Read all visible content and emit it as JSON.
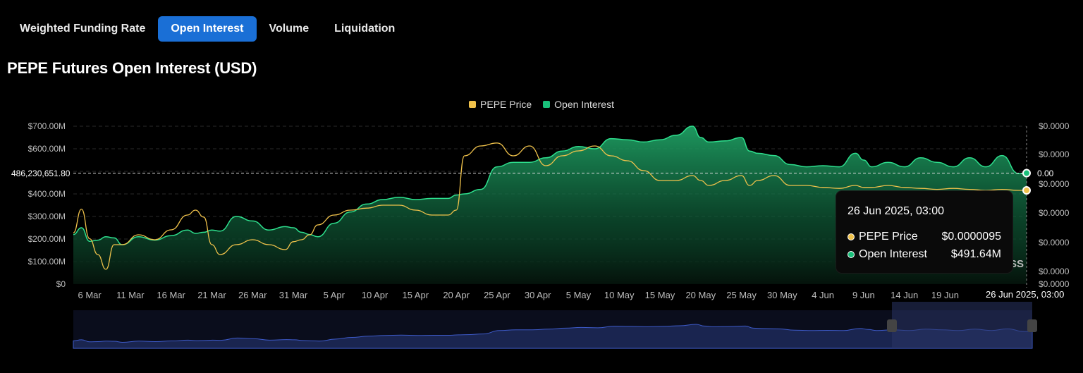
{
  "tabs": [
    {
      "label": "Weighted Funding Rate",
      "active": false
    },
    {
      "label": "Open Interest",
      "active": true
    },
    {
      "label": "Volume",
      "active": false
    },
    {
      "label": "Liquidation",
      "active": false
    }
  ],
  "title": "PEPE Futures Open Interest (USD)",
  "legend": [
    {
      "label": "PEPE Price",
      "color": "#f0c24b"
    },
    {
      "label": "Open Interest",
      "color": "#19c07a"
    }
  ],
  "crosshair": {
    "y_value_label": "486,230,651.80",
    "right_value_label": "0.00",
    "x_label": "26 Jun 2025, 03:00"
  },
  "tooltip": {
    "date": "26 Jun 2025, 03:00",
    "price_label": "PEPE Price",
    "price_value": "$0.0000095",
    "oi_label": "Open Interest",
    "oi_value": "$491.64M"
  },
  "watermark": "SS",
  "chart_data": {
    "type": "area",
    "title": "PEPE Futures Open Interest (USD)",
    "x_ticks": [
      "6 Mar",
      "11 Mar",
      "16 Mar",
      "21 Mar",
      "26 Mar",
      "31 Mar",
      "5 Apr",
      "10 Apr",
      "15 Apr",
      "20 Apr",
      "25 Apr",
      "30 Apr",
      "5 May",
      "10 May",
      "15 May",
      "20 May",
      "25 May",
      "30 May",
      "4 Jun",
      "9 Jun",
      "14 Jun",
      "19 Jun"
    ],
    "y_left_ticks": [
      "$700.00M",
      "$600.00M",
      "$500.00M",
      "$400.00M",
      "$300.00M",
      "$200.00M",
      "$100.00M",
      "$0"
    ],
    "y_right_ticks": [
      "$0.0000",
      "$0.0000",
      "$0.0000",
      "$0.0000",
      "$0.0000",
      "$0.0000",
      "$0.0000"
    ],
    "ylim_left": [
      0,
      700
    ],
    "ylim_right": [
      0,
      1.6e-05
    ],
    "x_range_days": [
      0,
      117
    ],
    "series": [
      {
        "name": "Open Interest",
        "color": "#19c07a",
        "unit": "USD millions",
        "x_days": [
          0,
          1,
          2,
          3,
          4,
          5,
          6,
          8,
          10,
          12,
          14,
          15,
          16,
          17,
          18,
          20,
          22,
          24,
          26,
          27,
          28,
          29,
          30,
          32,
          34,
          36,
          38,
          40,
          42,
          44,
          46,
          47,
          48,
          50,
          52,
          54,
          56,
          58,
          60,
          62,
          64,
          66,
          68,
          70,
          72,
          74,
          76,
          77,
          78,
          80,
          82,
          83,
          84,
          86,
          88,
          90,
          92,
          94,
          96,
          97,
          98,
          100,
          102,
          104,
          106,
          108,
          110,
          112,
          114,
          116,
          117
        ],
        "values": [
          220,
          250,
          190,
          195,
          210,
          205,
          175,
          210,
          195,
          215,
          240,
          225,
          230,
          240,
          235,
          300,
          280,
          240,
          255,
          250,
          230,
          220,
          210,
          270,
          320,
          355,
          375,
          385,
          375,
          380,
          380,
          395,
          400,
          420,
          520,
          540,
          540,
          560,
          590,
          610,
          600,
          645,
          640,
          630,
          640,
          660,
          700,
          650,
          630,
          635,
          650,
          590,
          580,
          570,
          530,
          520,
          525,
          520,
          580,
          550,
          520,
          540,
          520,
          560,
          540,
          520,
          560,
          520,
          570,
          490,
          492
        ]
      },
      {
        "name": "PEPE Price",
        "color": "#f0c24b",
        "unit": "USD",
        "x_days": [
          0,
          1,
          2,
          3,
          4,
          5,
          6,
          8,
          10,
          12,
          14,
          15,
          16,
          17,
          18,
          20,
          22,
          24,
          26,
          27,
          28,
          29,
          30,
          32,
          34,
          36,
          38,
          40,
          42,
          44,
          46,
          47,
          48,
          50,
          52,
          54,
          56,
          58,
          60,
          62,
          64,
          66,
          68,
          70,
          72,
          74,
          76,
          77,
          78,
          80,
          82,
          83,
          84,
          86,
          88,
          90,
          92,
          94,
          96,
          97,
          98,
          100,
          102,
          104,
          106,
          108,
          110,
          112,
          114,
          116,
          117
        ],
        "values": [
          5.2e-06,
          7.6e-06,
          4.6e-06,
          3e-06,
          1.5e-06,
          4e-06,
          4e-06,
          5e-06,
          4.5e-06,
          5.5e-06,
          7e-06,
          7.5e-06,
          6.8e-06,
          4e-06,
          3e-06,
          4e-06,
          4.5e-06,
          4e-06,
          3.5e-06,
          4.3e-06,
          4.5e-06,
          5e-06,
          6e-06,
          7e-06,
          7.5e-06,
          7.7e-06,
          8e-06,
          8e-06,
          7.5e-06,
          7e-06,
          7e-06,
          7.5e-06,
          1.3e-05,
          1.4e-05,
          1.43e-05,
          1.3e-05,
          1.4e-05,
          1.2e-05,
          1.3e-05,
          1.35e-05,
          1.4e-05,
          1.3e-05,
          1.25e-05,
          1.15e-05,
          1.05e-05,
          1.05e-05,
          1.1e-05,
          1.05e-05,
          1e-05,
          1.05e-05,
          1.1e-05,
          1e-05,
          1.05e-05,
          1.1e-05,
          1e-05,
          1e-05,
          9.8e-06,
          9.7e-06,
          1e-05,
          9.8e-06,
          9.8e-06,
          1e-05,
          9.8e-06,
          9.7e-06,
          9.6e-06,
          9.7e-06,
          9.6e-06,
          9.5e-06,
          9.6e-06,
          9.5e-06,
          9.5e-06
        ]
      }
    ],
    "grid": true,
    "legend_position": "top-center",
    "navigator": true
  }
}
